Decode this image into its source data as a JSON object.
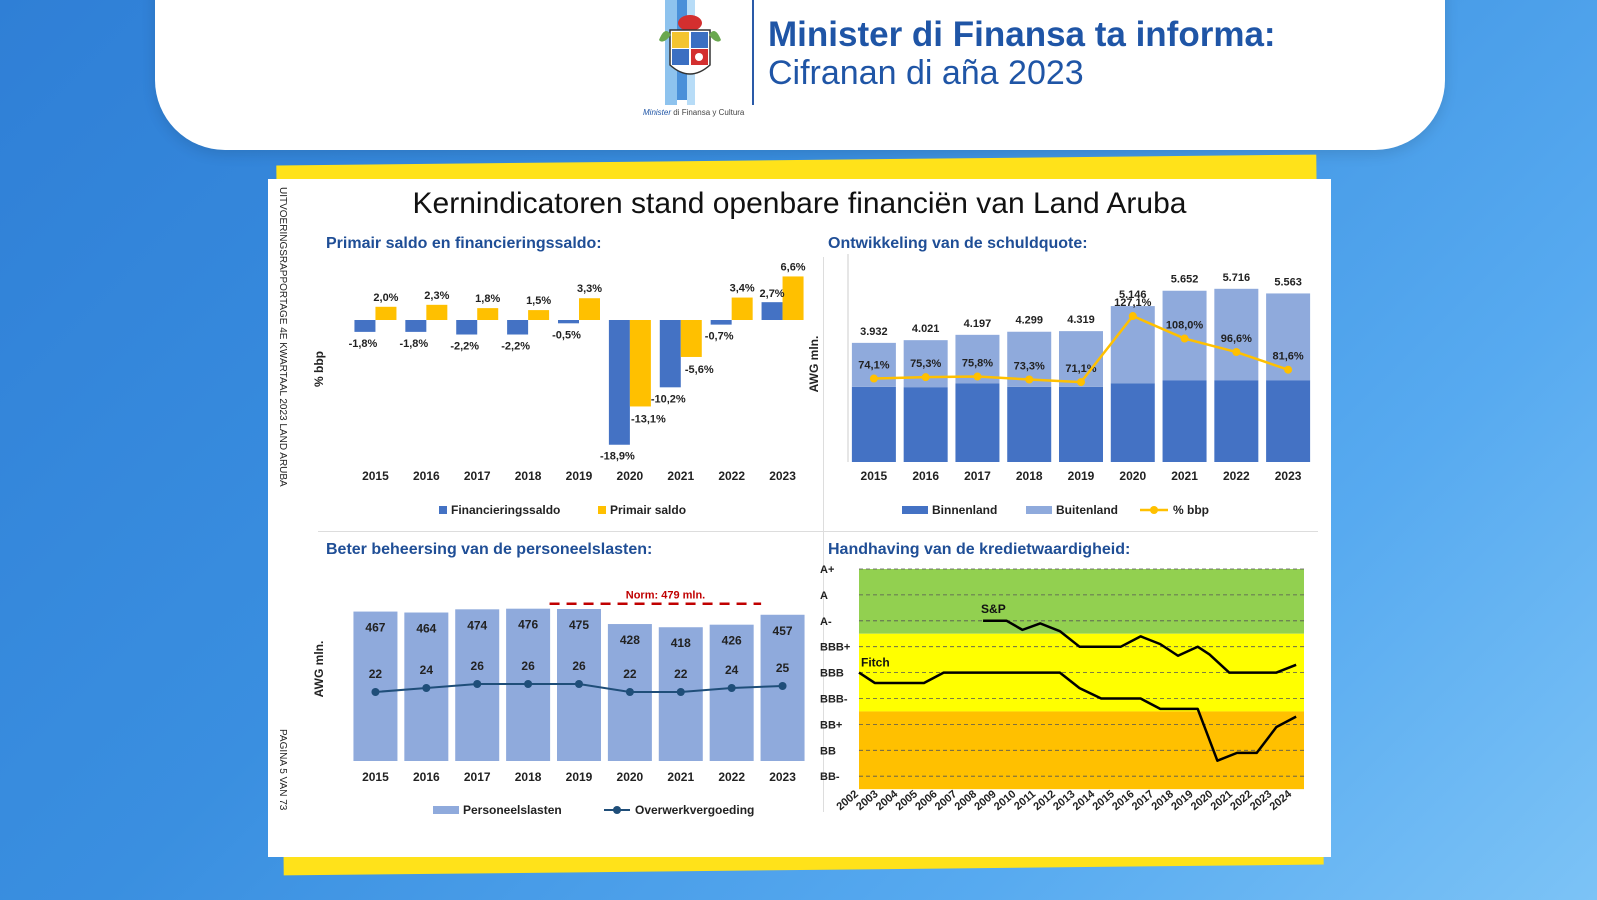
{
  "header": {
    "title_line1": "Minister di Finansa ta informa:",
    "title_line2": "Cifranan di aña 2023",
    "logo_caption_a": "Minister",
    "logo_caption_b": " di Finansa y Cultura"
  },
  "card": {
    "title": "Kernindicatoren stand openbare financiën van Land Aruba",
    "side_text_top": "UITVOERINGSRAPPORTAGE 4E KWARTAAL 2023 LAND ARUBA",
    "side_text_bottom": "PAGINA 5 VAN 73"
  },
  "colors": {
    "blue_dark": "#4472c4",
    "blue_light": "#8faadc",
    "yellow": "#ffc000",
    "navy": "#1f4e79",
    "green_zone": "#92d050",
    "yellow_zone": "#ffff00",
    "orange_zone": "#ffc000",
    "norm_red": "#c00000"
  },
  "chart_data": [
    {
      "type": "bar",
      "title": "Primair saldo en financieringssaldo:",
      "ylabel": "% bbp",
      "categories": [
        "2015",
        "2016",
        "2017",
        "2018",
        "2019",
        "2020",
        "2021",
        "2022",
        "2023"
      ],
      "series": [
        {
          "name": "Financieringssaldo",
          "values": [
            -1.8,
            -1.8,
            -2.2,
            -2.2,
            -0.5,
            -18.9,
            -10.2,
            -0.7,
            2.7
          ],
          "labels": [
            "-1,8%",
            "-1,8%",
            "-2,2%",
            "-2,2%",
            "-0,5%",
            "-18,9%",
            "-10,2%",
            "-0,7%",
            "2,7%"
          ]
        },
        {
          "name": "Primair saldo",
          "values": [
            2.0,
            2.3,
            1.8,
            1.5,
            3.3,
            -13.1,
            -5.6,
            3.4,
            6.6
          ],
          "labels": [
            "2,0%",
            "2,3%",
            "1,8%",
            "1,5%",
            "3,3%",
            "-13,1%",
            "-5,6%",
            "3,4%",
            "6,6%"
          ]
        }
      ],
      "ylim": [
        -19,
        7
      ]
    },
    {
      "type": "bar",
      "title": "Ontwikkeling van de schuldquote:",
      "ylabel": "AWG mln.",
      "categories": [
        "2015",
        "2016",
        "2017",
        "2018",
        "2019",
        "2020",
        "2021",
        "2022",
        "2023"
      ],
      "totals": [
        3932,
        4021,
        4197,
        4299,
        4319,
        5146,
        5652,
        5716,
        5563
      ],
      "total_labels": [
        "3.932",
        "4.021",
        "4.197",
        "4.299",
        "4.319",
        "5.146",
        "5.652",
        "5.716",
        "5.563"
      ],
      "series": [
        {
          "name": "Binnenland",
          "values": [
            2480,
            2470,
            2600,
            2480,
            2480,
            2600,
            2700,
            2700,
            2700
          ]
        },
        {
          "name": "Buitenland",
          "values": [
            1452,
            1551,
            1597,
            1819,
            1839,
            2546,
            2952,
            3016,
            2863
          ]
        },
        {
          "name": "% bbp",
          "type": "line",
          "values": [
            74.1,
            75.3,
            75.8,
            73.3,
            71.1,
            127.1,
            108.0,
            96.6,
            81.6
          ],
          "labels": [
            "74,1%",
            "75,3%",
            "75,8%",
            "73,3%",
            "71,1%",
            "127,1%",
            "108,0%",
            "96,6%",
            "81,6%"
          ]
        }
      ],
      "ylim": [
        0,
        6000
      ]
    },
    {
      "type": "bar",
      "title": "Beter beheersing van de personeelslasten:",
      "ylabel": "AWG mln.",
      "categories": [
        "2015",
        "2016",
        "2017",
        "2018",
        "2019",
        "2020",
        "2021",
        "2022",
        "2023"
      ],
      "series": [
        {
          "name": "Personeelslasten",
          "values": [
            467,
            464,
            474,
            476,
            475,
            428,
            418,
            426,
            457
          ]
        },
        {
          "name": "Overwerkvergoeding",
          "type": "line",
          "values": [
            22,
            24,
            26,
            26,
            26,
            22,
            22,
            24,
            25
          ]
        }
      ],
      "norm": {
        "label": "Norm: 479 mln.",
        "value": 479
      },
      "ylim": [
        0,
        500
      ]
    },
    {
      "type": "line",
      "title": "Handhaving van de kredietwaardigheid:",
      "rating_scale": [
        "A+",
        "A",
        "A-",
        "BBB+",
        "BBB",
        "BBB-",
        "BB+",
        "BB",
        "BB-"
      ],
      "x": [
        "2002",
        "2003",
        "2004",
        "2005",
        "2006",
        "2007",
        "2008",
        "2009",
        "2010",
        "2011",
        "2012",
        "2013",
        "2014",
        "2015",
        "2016",
        "2017",
        "2018",
        "2019",
        "2020",
        "2021",
        "2022",
        "2023",
        "2024"
      ],
      "series": [
        {
          "name": "S&P",
          "points": [
            [
              2008.3,
              2
            ],
            [
              2009.5,
              2
            ],
            [
              2010.3,
              2.35
            ],
            [
              2011.2,
              2.1
            ],
            [
              2012.2,
              2.4
            ],
            [
              2013.2,
              3.0
            ],
            [
              2014.3,
              3.0
            ],
            [
              2015.3,
              3.0
            ],
            [
              2016.3,
              2.6
            ],
            [
              2017.3,
              2.9
            ],
            [
              2018.2,
              3.35
            ],
            [
              2019.2,
              3.0
            ],
            [
              2019.8,
              3.3
            ],
            [
              2020.8,
              4.0
            ],
            [
              2022.2,
              4.0
            ],
            [
              2023.2,
              4.0
            ],
            [
              2024.2,
              3.7
            ]
          ]
        },
        {
          "name": "Fitch",
          "points": [
            [
              2002,
              4.0
            ],
            [
              2002.8,
              4.4
            ],
            [
              2003.5,
              4.4
            ],
            [
              2004.3,
              4.4
            ],
            [
              2005.3,
              4.4
            ],
            [
              2006.3,
              4.0
            ],
            [
              2012.2,
              4.0
            ],
            [
              2013.2,
              4.6
            ],
            [
              2014.3,
              5.0
            ],
            [
              2015.3,
              5.0
            ],
            [
              2016.3,
              5.0
            ],
            [
              2017.3,
              5.4
            ],
            [
              2018.2,
              5.4
            ],
            [
              2019.2,
              5.4
            ],
            [
              2020.2,
              7.4
            ],
            [
              2021.2,
              7.1
            ],
            [
              2022.2,
              7.1
            ],
            [
              2023.2,
              6.1
            ],
            [
              2024.2,
              5.7
            ]
          ]
        }
      ],
      "zones": [
        {
          "from": "A+",
          "to": "A-",
          "color": "green"
        },
        {
          "from": "BBB+",
          "to": "BBB-",
          "color": "yellow"
        },
        {
          "from": "BB+",
          "to": "BB-",
          "color": "orange"
        }
      ]
    }
  ]
}
